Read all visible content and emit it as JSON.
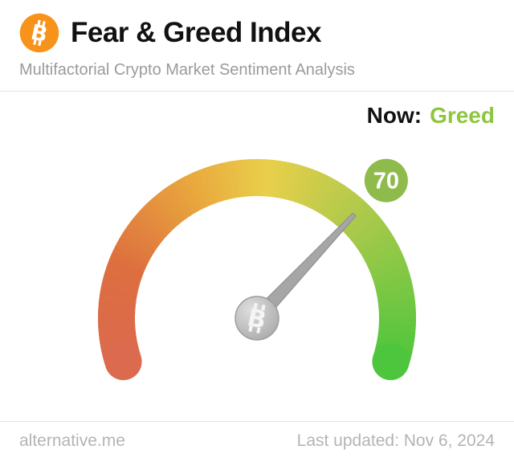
{
  "header": {
    "title": "Fear & Greed Index",
    "subtitle": "Multifactorial Crypto Market Sentiment Analysis",
    "logo_icon": "bitcoin-icon",
    "logo_color": "#f7931a"
  },
  "status": {
    "label": "Now:",
    "value": "Greed",
    "value_color": "#8dc63f"
  },
  "chart_data": {
    "type": "gauge",
    "min": 0,
    "max": 100,
    "value": 70,
    "classification": "Greed",
    "start_angle_deg": 198,
    "end_angle_deg": -18,
    "badge_color": "#8fba4c",
    "needle_color": "#a6a6a6",
    "center_icon": "bitcoin-icon",
    "color_stops": [
      {
        "pos": 0.0,
        "color": "#db6a4f"
      },
      {
        "pos": 0.18,
        "color": "#dd6e3f"
      },
      {
        "pos": 0.38,
        "color": "#e9a83e"
      },
      {
        "pos": 0.52,
        "color": "#e9cf4a"
      },
      {
        "pos": 0.72,
        "color": "#a9c94b"
      },
      {
        "pos": 1.0,
        "color": "#4dc53c"
      }
    ]
  },
  "footer": {
    "site": "alternative.me",
    "last_updated": "Last updated: Nov 6, 2024"
  }
}
